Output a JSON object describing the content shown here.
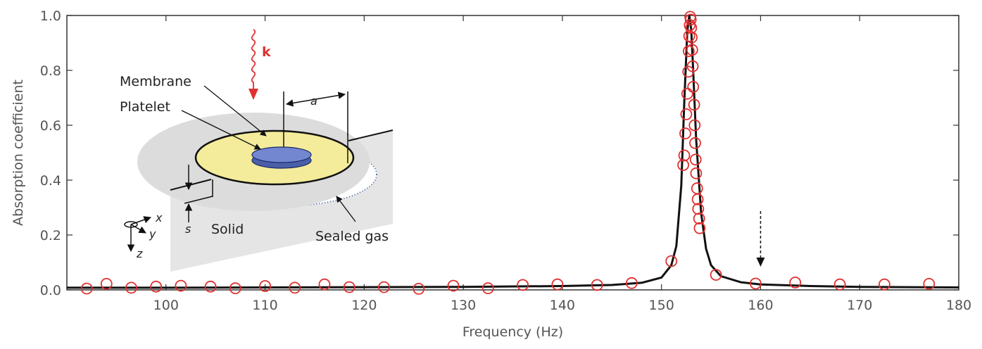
{
  "chart_data": {
    "type": "line",
    "xlabel": "Frequency (Hz)",
    "ylabel": "Absorption coefficient",
    "xlim": [
      90,
      180
    ],
    "ylim": [
      0,
      1.0
    ],
    "xticks": [
      "100",
      "110",
      "120",
      "130",
      "140",
      "150",
      "160",
      "170",
      "180"
    ],
    "yticks": [
      "0.0",
      "0.2",
      "0.4",
      "0.6",
      "0.8",
      "1.0"
    ],
    "grid": false,
    "series": [
      {
        "style": "line",
        "color": "#111111",
        "x": [
          90,
          100,
          110,
          120,
          130,
          140,
          145,
          148,
          150,
          151,
          151.5,
          152,
          152.3,
          152.6,
          152.8,
          153,
          153.2,
          153.5,
          154,
          154.5,
          155,
          156,
          158,
          160,
          165,
          170,
          180
        ],
        "y": [
          0.008,
          0.008,
          0.009,
          0.01,
          0.011,
          0.014,
          0.018,
          0.026,
          0.045,
          0.09,
          0.16,
          0.38,
          0.68,
          0.94,
          1.0,
          0.95,
          0.8,
          0.55,
          0.28,
          0.15,
          0.09,
          0.05,
          0.028,
          0.02,
          0.014,
          0.011,
          0.009
        ]
      },
      {
        "style": "markers",
        "color": "#e03030",
        "x": [
          92,
          94,
          96.5,
          99,
          101.5,
          104.5,
          107,
          110,
          113,
          116,
          118.5,
          122,
          125.5,
          129,
          132.5,
          136,
          139.5,
          143.5,
          147,
          151,
          152.2,
          152.3,
          152.4,
          152.5,
          152.6,
          152.7,
          152.75,
          152.8,
          152.85,
          152.9,
          152.95,
          153,
          153.05,
          153.1,
          153.15,
          153.2,
          153.3,
          153.35,
          153.4,
          153.45,
          153.5,
          153.6,
          153.65,
          153.7,
          153.8,
          153.85,
          155.5,
          159.5,
          163.5,
          168,
          172.5,
          177
        ],
        "y": [
          0.005,
          0.022,
          0.008,
          0.012,
          0.015,
          0.012,
          0.006,
          0.014,
          0.008,
          0.02,
          0.01,
          0.01,
          0.004,
          0.015,
          0.006,
          0.018,
          0.02,
          0.018,
          0.025,
          0.105,
          0.455,
          0.49,
          0.57,
          0.64,
          0.715,
          0.795,
          0.87,
          0.925,
          0.965,
          0.995,
          0.985,
          0.955,
          0.92,
          0.875,
          0.815,
          0.74,
          0.675,
          0.6,
          0.535,
          0.475,
          0.425,
          0.37,
          0.33,
          0.295,
          0.26,
          0.225,
          0.055,
          0.023,
          0.027,
          0.02,
          0.02,
          0.022
        ]
      }
    ],
    "annotations": {
      "arrow_at_x": 160
    }
  },
  "inset": {
    "k_label": "k",
    "membrane_label": "Membrane",
    "platelet_label": "Platelet",
    "radius_label": "a",
    "solid_label": "Solid",
    "sealed_gas_label": "Sealed gas",
    "s_label": "s",
    "axis_x_label": "x",
    "axis_y_label": "y",
    "axis_z_label": "z"
  }
}
